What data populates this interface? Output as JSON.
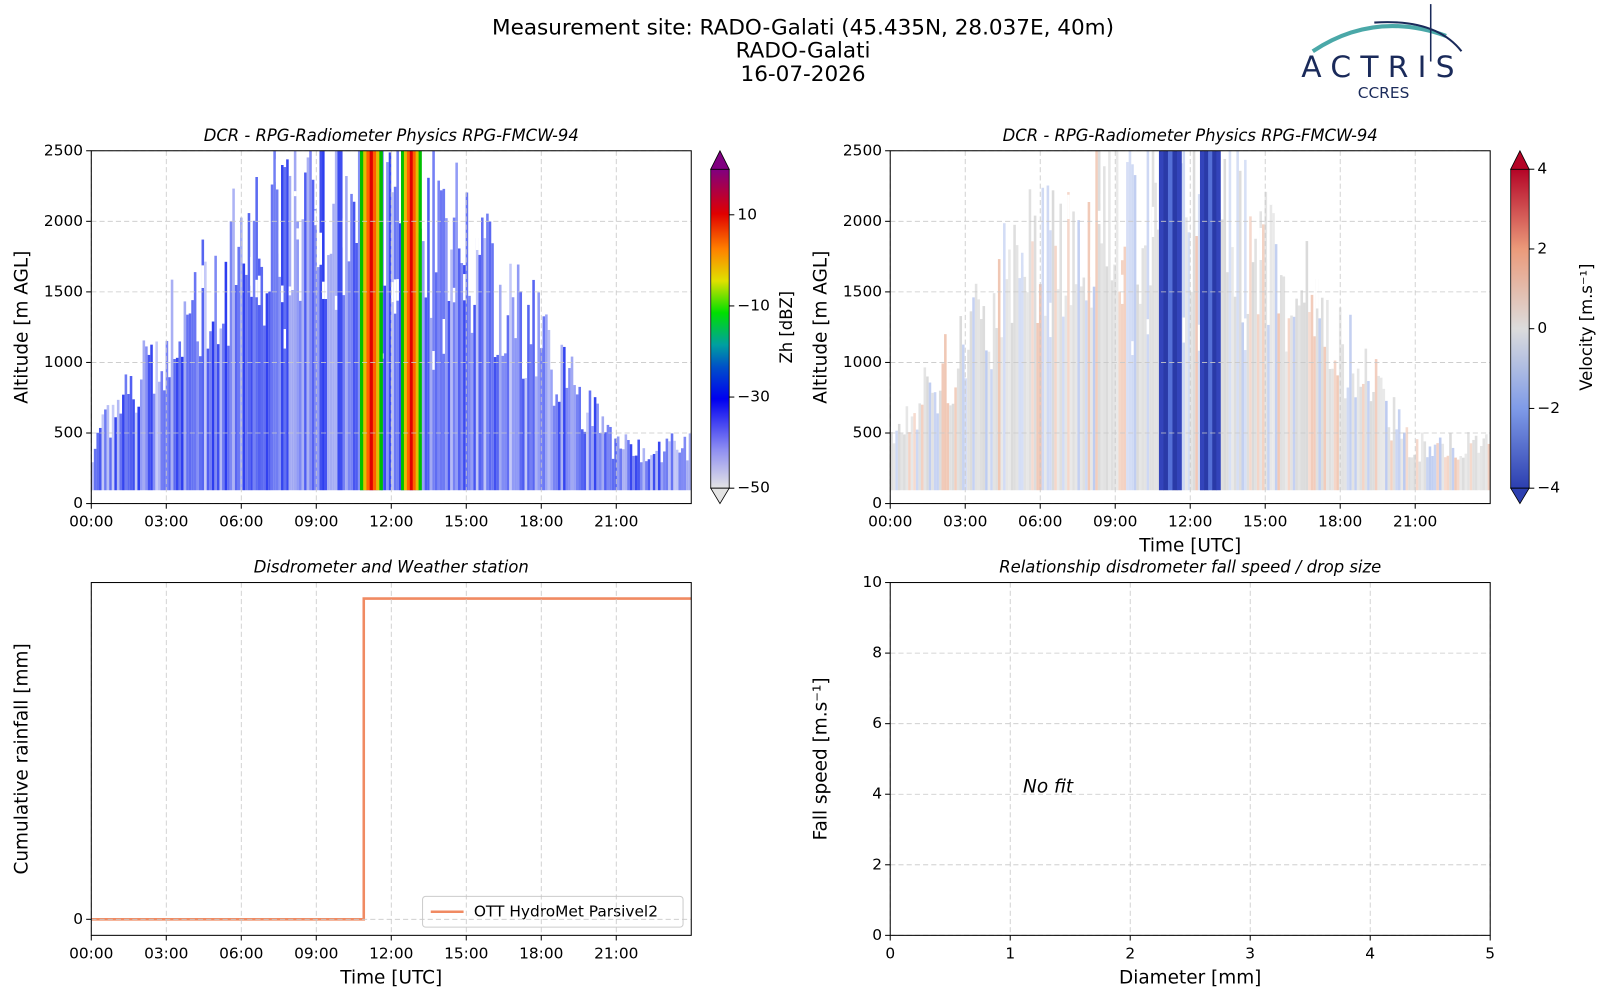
{
  "header": {
    "title_lines": [
      "Measurement site: RADO-Galati (45.435N, 28.037E, 40m)",
      "RADO-Galati",
      "16-07-2026"
    ]
  },
  "logo": {
    "name": "ACTRIS",
    "subname": "CCRES"
  },
  "chart_data": [
    {
      "type": "heatmap",
      "title": "DCR - RPG-Radiometer Physics RPG-FMCW-94",
      "y_label": "Altitude [m AGL]",
      "xlim": [
        0,
        24
      ],
      "xticks": [
        {
          "value": 0,
          "label": "00:00"
        },
        {
          "value": 3,
          "label": "03:00"
        },
        {
          "value": 6,
          "label": "06:00"
        },
        {
          "value": 9,
          "label": "09:00"
        },
        {
          "value": 12,
          "label": "12:00"
        },
        {
          "value": 15,
          "label": "15:00"
        },
        {
          "value": 18,
          "label": "18:00"
        },
        {
          "value": 21,
          "label": "21:00"
        }
      ],
      "ylim": [
        0,
        2500
      ],
      "yticks": [
        0,
        500,
        1000,
        1500,
        2000,
        2500
      ],
      "grid": true,
      "colormap": "Zh",
      "colorbar": {
        "label": "Zh [dBZ]",
        "lim": [
          -50,
          20
        ],
        "ticks": [
          {
            "value": -50,
            "label": "−50"
          },
          {
            "value": -30,
            "label": "−30"
          },
          {
            "value": -10,
            "label": "−10"
          },
          10
        ]
      }
    },
    {
      "type": "heatmap",
      "title": "DCR - RPG-Radiometer Physics RPG-FMCW-94",
      "y_label": "Altitude [m AGL]",
      "x_label": "Time [UTC]",
      "xlim": [
        0,
        24
      ],
      "xticks": [
        {
          "value": 0,
          "label": "00:00"
        },
        {
          "value": 3,
          "label": "03:00"
        },
        {
          "value": 6,
          "label": "06:00"
        },
        {
          "value": 9,
          "label": "09:00"
        },
        {
          "value": 12,
          "label": "12:00"
        },
        {
          "value": 15,
          "label": "15:00"
        },
        {
          "value": 18,
          "label": "18:00"
        },
        {
          "value": 21,
          "label": "21:00"
        }
      ],
      "ylim": [
        0,
        2500
      ],
      "yticks": [
        0,
        500,
        1000,
        1500,
        2000,
        2500
      ],
      "grid": true,
      "colormap": "velocity",
      "colorbar": {
        "label": "Velocity [m.s⁻¹]",
        "lim": [
          -4,
          4
        ],
        "ticks": [
          {
            "value": -4,
            "label": "−4"
          },
          {
            "value": -2,
            "label": "−2"
          },
          0,
          2,
          4
        ]
      }
    },
    {
      "type": "line",
      "title": "Disdrometer and Weather station",
      "x_label": "Time [UTC]",
      "y_label": "Cumulative rainfall [mm]",
      "xlim": [
        0,
        24
      ],
      "xticks": [
        {
          "value": 0,
          "label": "00:00"
        },
        {
          "value": 3,
          "label": "03:00"
        },
        {
          "value": 6,
          "label": "06:00"
        },
        {
          "value": 9,
          "label": "09:00"
        },
        {
          "value": 12,
          "label": "12:00"
        },
        {
          "value": 15,
          "label": "15:00"
        },
        {
          "value": 18,
          "label": "18:00"
        },
        {
          "value": 21,
          "label": "21:00"
        }
      ],
      "ylim": [
        -0.01,
        0.21
      ],
      "yticks": [
        0
      ],
      "grid": true,
      "legend": "lower right",
      "x": [
        0,
        10.9,
        10.9,
        24
      ],
      "series": [
        {
          "name": "OTT HydroMet Parsivel2",
          "color": "#f08a62",
          "values": [
            0,
            0,
            0.2,
            0.2
          ]
        }
      ]
    },
    {
      "type": "scatter",
      "title": "Relationship disdrometer fall speed / drop size",
      "x_label": "Diameter [mm]",
      "y_label": "Fall speed [m.s⁻¹]",
      "xlim": [
        0,
        5
      ],
      "xticks": [
        0,
        1,
        2,
        3,
        4,
        5
      ],
      "ylim": [
        0,
        10
      ],
      "yticks": [
        0,
        2,
        4,
        6,
        8,
        10
      ],
      "grid": true,
      "annotation": "No fit"
    }
  ]
}
